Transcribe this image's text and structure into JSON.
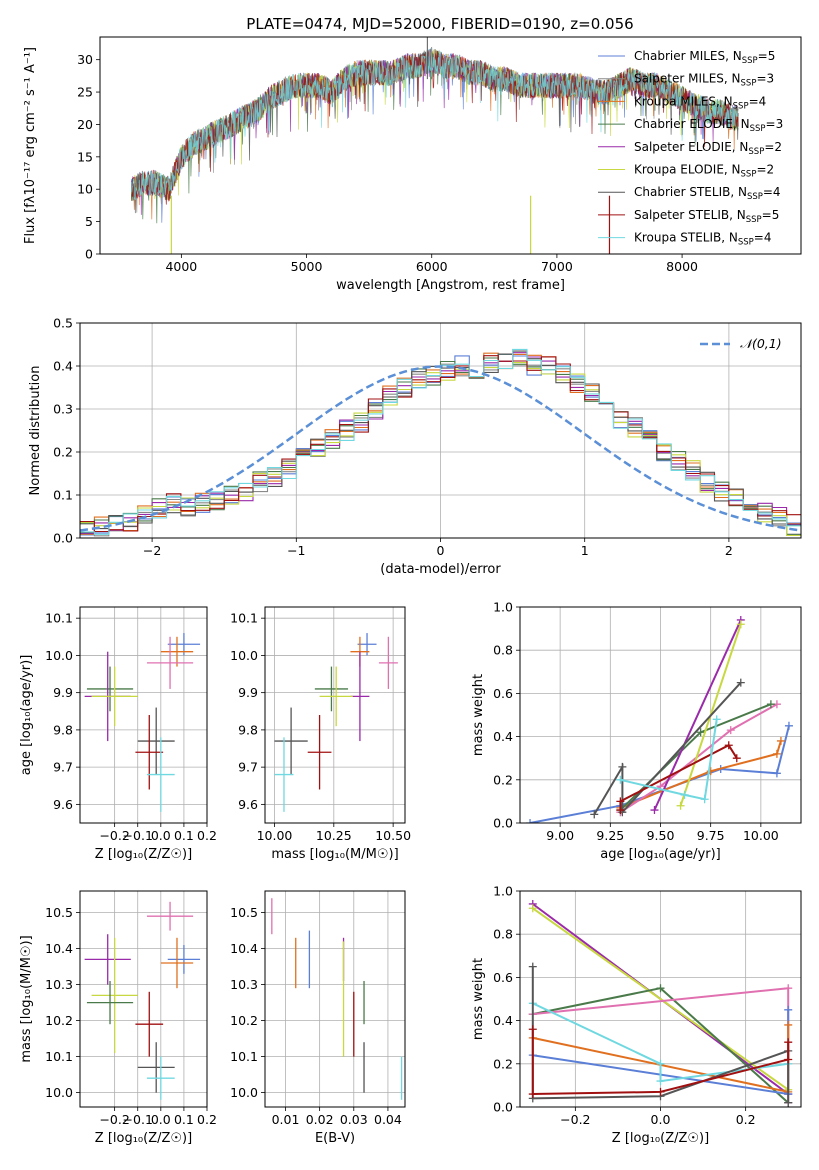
{
  "figure": {
    "title": "PLATE=0474, MJD=52000, FIBERID=0190, z=0.056",
    "colors": {
      "Chabrier MILES": "#5b7fd6",
      "Salpeter MILES": "#8a8a8a",
      "Kroupa MILES": "#e07020",
      "Chabrier ELODIE": "#4a7a4a",
      "Salpeter ELODIE": "#9a2aaa",
      "Kroupa ELODIE": "#c8d840",
      "Chabrier STELIB": "#555555",
      "Salpeter STELIB": "#a01010",
      "Kroupa STELIB": "#70d8e0",
      "Kroupa pink": "#e070b0"
    }
  },
  "chart_data": [
    {
      "id": "spectrum",
      "type": "line",
      "xlabel": "wavelength [Angstrom, rest frame]",
      "ylabel": "Flux [fλ10⁻¹⁷ erg cm⁻² s⁻¹ A⁻¹]",
      "xlim": [
        3350,
        8950
      ],
      "ylim": [
        0,
        33.5
      ],
      "xticks": [
        4000,
        5000,
        6000,
        7000,
        8000
      ],
      "yticks": [
        0,
        5,
        10,
        15,
        20,
        25,
        30
      ],
      "grid": false,
      "legend_position": "top-right",
      "x": [
        3600,
        3700,
        3800,
        3900,
        4000,
        4100,
        4200,
        4300,
        4400,
        4500,
        4600,
        4700,
        4800,
        4900,
        5000,
        5100,
        5200,
        5300,
        5400,
        5500,
        5600,
        5700,
        5800,
        5900,
        6000,
        6100,
        6200,
        6300,
        6400,
        6500,
        6600,
        6700,
        6800,
        6900,
        7000,
        7100,
        7200,
        7300,
        7400,
        7500,
        7600,
        7700,
        7800,
        7900,
        8000,
        8100,
        8200,
        8300,
        8400
      ],
      "y": [
        10,
        11,
        11,
        10,
        15,
        17,
        18,
        19,
        20,
        21,
        22,
        24,
        25,
        26,
        26,
        26,
        25,
        27,
        28,
        28,
        28,
        28,
        29,
        29,
        30,
        29,
        29,
        28,
        28,
        27,
        27,
        26,
        26,
        26,
        26,
        26,
        26,
        25,
        25,
        26,
        27,
        26,
        26,
        25,
        24,
        23,
        22,
        22,
        21
      ],
      "series": [
        {
          "name": "Chabrier MILES, N$_{SSP}$=5",
          "label": "Chabrier MILES, N",
          "sub": "SSP",
          "suffix": "=5",
          "color": "#5b7fd6"
        },
        {
          "name": "Salpeter MILES, N$_{SSP}$=3",
          "label": "Salpeter MILES, N",
          "sub": "SSP",
          "suffix": "=3",
          "color": "#8a8a8a"
        },
        {
          "name": "Kroupa MILES, N$_{SSP}$=4",
          "label": "Kroupa MILES, N",
          "sub": "SSP",
          "suffix": "=4",
          "color": "#e07020"
        },
        {
          "name": "Chabrier ELODIE, N$_{SSP}$=3",
          "label": "Chabrier ELODIE, N",
          "sub": "SSP",
          "suffix": "=3",
          "color": "#4a7a4a"
        },
        {
          "name": "Salpeter ELODIE, N$_{SSP}$=2",
          "label": "Salpeter ELODIE, N",
          "sub": "SSP",
          "suffix": "=2",
          "color": "#9a2aaa"
        },
        {
          "name": "Kroupa ELODIE, N$_{SSP}$=2",
          "label": "Kroupa ELODIE, N",
          "sub": "SSP",
          "suffix": "=2",
          "color": "#c8d840"
        },
        {
          "name": "Chabrier STELIB, N$_{SSP}$=4",
          "label": "Chabrier STELIB, N",
          "sub": "SSP",
          "suffix": "=4",
          "color": "#555555"
        },
        {
          "name": "Salpeter STELIB, N$_{SSP}$=5",
          "label": "Salpeter STELIB, N",
          "sub": "SSP",
          "suffix": "=5",
          "color": "#a01010"
        },
        {
          "name": "Kroupa STELIB, N$_{SSP}$=4",
          "label": "Kroupa STELIB, N",
          "sub": "SSP",
          "suffix": "=4",
          "color": "#70d8e0"
        }
      ]
    },
    {
      "id": "residuals",
      "type": "line",
      "xlabel": "(data-model)/error",
      "ylabel": "Normed distribution",
      "xlim": [
        -2.5,
        2.5
      ],
      "ylim": [
        0,
        0.5
      ],
      "xticks": [
        -2,
        -1,
        0,
        1,
        2
      ],
      "yticks": [
        0.0,
        0.1,
        0.2,
        0.3,
        0.4,
        0.5
      ],
      "grid": true,
      "legend": "𝒩(0,1)",
      "legend_position": "top-right",
      "bin_edges_start": -2.5,
      "bin_width": 0.1,
      "hist": [
        0.02,
        0.03,
        0.03,
        0.04,
        0.05,
        0.07,
        0.08,
        0.07,
        0.08,
        0.09,
        0.1,
        0.11,
        0.13,
        0.14,
        0.16,
        0.19,
        0.21,
        0.23,
        0.25,
        0.27,
        0.3,
        0.33,
        0.35,
        0.37,
        0.38,
        0.39,
        0.4,
        0.39,
        0.41,
        0.41,
        0.42,
        0.4,
        0.4,
        0.38,
        0.36,
        0.34,
        0.31,
        0.28,
        0.26,
        0.23,
        0.2,
        0.18,
        0.16,
        0.13,
        0.11,
        0.09,
        0.08,
        0.06,
        0.05,
        0.03
      ]
    },
    {
      "id": "age_vs_Z",
      "type": "scatter",
      "xlabel": "Z [log₁₀(Z/Z☉)]",
      "ylabel": "age  [log₁₀(age/yr)]",
      "xlim": [
        -0.35,
        0.2
      ],
      "ylim": [
        9.55,
        10.13
      ],
      "xticks": [
        -0.2,
        -0.1,
        0.0,
        0.1,
        0.2
      ],
      "yticks": [
        9.6,
        9.7,
        9.8,
        9.9,
        10.0,
        10.1
      ],
      "grid": true,
      "points": [
        {
          "x": 0.1,
          "y": 10.03,
          "xerr": 0.07,
          "yerr": 0.03,
          "color": "#5b7fd6"
        },
        {
          "x": 0.07,
          "y": 10.01,
          "xerr": 0.07,
          "yerr": 0.04,
          "color": "#e07020"
        },
        {
          "x": 0.04,
          "y": 9.98,
          "xerr": 0.1,
          "yerr": 0.07,
          "color": "#e070b0"
        },
        {
          "x": -0.22,
          "y": 9.91,
          "xerr": 0.1,
          "yerr": 0.06,
          "color": "#4a7a4a"
        },
        {
          "x": -0.23,
          "y": 9.89,
          "xerr": 0.1,
          "yerr": 0.12,
          "color": "#9a2aaa"
        },
        {
          "x": -0.2,
          "y": 9.89,
          "xerr": 0.1,
          "yerr": 0.08,
          "color": "#c8d840"
        },
        {
          "x": -0.02,
          "y": 9.77,
          "xerr": 0.08,
          "yerr": 0.09,
          "color": "#555555"
        },
        {
          "x": -0.05,
          "y": 9.74,
          "xerr": 0.06,
          "yerr": 0.1,
          "color": "#a01010"
        },
        {
          "x": 0.0,
          "y": 9.68,
          "xerr": 0.06,
          "yerr": 0.1,
          "color": "#70d8e0"
        }
      ]
    },
    {
      "id": "age_vs_mass",
      "type": "scatter",
      "xlabel": "mass [log₁₀(M/M☉)]",
      "ylabel": "",
      "xlim": [
        9.96,
        10.55
      ],
      "ylim": [
        9.55,
        10.13
      ],
      "xticks": [
        10.0,
        10.25,
        10.5
      ],
      "yticks": [
        9.6,
        9.7,
        9.8,
        9.9,
        10.0,
        10.1
      ],
      "grid": true,
      "points": [
        {
          "x": 10.39,
          "y": 10.03,
          "xerr": 0.04,
          "yerr": 0.03,
          "color": "#5b7fd6"
        },
        {
          "x": 10.36,
          "y": 10.01,
          "xerr": 0.04,
          "yerr": 0.04,
          "color": "#e07020"
        },
        {
          "x": 10.48,
          "y": 9.98,
          "xerr": 0.04,
          "yerr": 0.07,
          "color": "#e070b0"
        },
        {
          "x": 10.24,
          "y": 9.91,
          "xerr": 0.07,
          "yerr": 0.06,
          "color": "#4a7a4a"
        },
        {
          "x": 10.36,
          "y": 9.89,
          "xerr": 0.04,
          "yerr": 0.12,
          "color": "#9a2aaa"
        },
        {
          "x": 10.26,
          "y": 9.89,
          "xerr": 0.07,
          "yerr": 0.08,
          "color": "#c8d840"
        },
        {
          "x": 10.07,
          "y": 9.77,
          "xerr": 0.07,
          "yerr": 0.09,
          "color": "#555555"
        },
        {
          "x": 10.19,
          "y": 9.74,
          "xerr": 0.05,
          "yerr": 0.1,
          "color": "#a01010"
        },
        {
          "x": 10.04,
          "y": 9.68,
          "xerr": 0.04,
          "yerr": 0.1,
          "color": "#70d8e0"
        }
      ]
    },
    {
      "id": "weight_vs_age",
      "type": "line",
      "xlabel": "age  [log₁₀(age/yr)]",
      "ylabel": "mass weight",
      "xlim": [
        8.8,
        10.2
      ],
      "ylim": [
        0.0,
        1.0
      ],
      "xticks": [
        9.0,
        9.25,
        9.5,
        9.75,
        10.0
      ],
      "yticks": [
        0.0,
        0.2,
        0.4,
        0.6,
        0.8,
        1.0
      ],
      "grid": true,
      "series": [
        {
          "color": "#5b7fd6",
          "x": [
            8.85,
            9.3,
            9.8,
            10.08,
            10.14
          ],
          "y": [
            0.0,
            0.08,
            0.25,
            0.23,
            0.45
          ]
        },
        {
          "color": "#e07020",
          "x": [
            9.3,
            9.75,
            10.08,
            10.1
          ],
          "y": [
            0.07,
            0.24,
            0.32,
            0.38
          ]
        },
        {
          "color": "#e070b0",
          "x": [
            9.3,
            9.5,
            9.85,
            10.08
          ],
          "y": [
            0.05,
            0.17,
            0.43,
            0.55
          ]
        },
        {
          "color": "#4a7a4a",
          "x": [
            9.3,
            9.7,
            10.05
          ],
          "y": [
            0.06,
            0.42,
            0.55
          ]
        },
        {
          "color": "#9a2aaa",
          "x": [
            9.47,
            9.9
          ],
          "y": [
            0.06,
            0.94
          ]
        },
        {
          "color": "#c8d840",
          "x": [
            9.6,
            9.9
          ],
          "y": [
            0.08,
            0.92
          ]
        },
        {
          "color": "#555555",
          "x": [
            9.17,
            9.31,
            9.31,
            9.9
          ],
          "y": [
            0.04,
            0.26,
            0.05,
            0.65
          ]
        },
        {
          "color": "#a01010",
          "x": [
            9.3,
            9.3,
            9.84,
            9.88
          ],
          "y": [
            0.06,
            0.1,
            0.36,
            0.3
          ]
        },
        {
          "color": "#70d8e0",
          "x": [
            9.3,
            9.62,
            9.72,
            9.78
          ],
          "y": [
            0.2,
            0.13,
            0.11,
            0.48
          ]
        }
      ]
    },
    {
      "id": "mass_vs_Z",
      "type": "scatter",
      "xlabel": "Z [log₁₀(Z/Z☉)]",
      "ylabel": "mass [log₁₀(M/M☉)]",
      "xlim": [
        -0.35,
        0.2
      ],
      "ylim": [
        9.96,
        10.56
      ],
      "xticks": [
        -0.2,
        -0.1,
        0.0,
        0.1,
        0.2
      ],
      "yticks": [
        10.0,
        10.1,
        10.2,
        10.3,
        10.4,
        10.5
      ],
      "grid": true,
      "points": [
        {
          "x": 0.04,
          "y": 10.49,
          "xerr": 0.1,
          "yerr": 0.04,
          "color": "#e070b0"
        },
        {
          "x": 0.1,
          "y": 10.37,
          "xerr": 0.07,
          "yerr": 0.04,
          "color": "#5b7fd6"
        },
        {
          "x": 0.07,
          "y": 10.36,
          "xerr": 0.07,
          "yerr": 0.07,
          "color": "#e07020"
        },
        {
          "x": -0.23,
          "y": 10.37,
          "xerr": 0.1,
          "yerr": 0.07,
          "color": "#9a2aaa"
        },
        {
          "x": -0.2,
          "y": 10.27,
          "xerr": 0.1,
          "yerr": 0.16,
          "color": "#c8d840"
        },
        {
          "x": -0.22,
          "y": 10.25,
          "xerr": 0.1,
          "yerr": 0.06,
          "color": "#4a7a4a"
        },
        {
          "x": -0.05,
          "y": 10.19,
          "xerr": 0.06,
          "yerr": 0.09,
          "color": "#a01010"
        },
        {
          "x": -0.02,
          "y": 10.07,
          "xerr": 0.08,
          "yerr": 0.07,
          "color": "#555555"
        },
        {
          "x": 0.0,
          "y": 10.04,
          "xerr": 0.06,
          "yerr": 0.06,
          "color": "#70d8e0"
        }
      ]
    },
    {
      "id": "mass_vs_ebv",
      "type": "scatter",
      "xlabel": "E(B-V)",
      "ylabel": "",
      "xlim": [
        0.004,
        0.045
      ],
      "ylim": [
        9.96,
        10.56
      ],
      "xticks": [
        0.01,
        0.02,
        0.03,
        0.04
      ],
      "yticks": [
        10.0,
        10.1,
        10.2,
        10.3,
        10.4,
        10.5
      ],
      "grid": true,
      "points": [
        {
          "x": 0.006,
          "y": 10.49,
          "xerr": 0,
          "yerr": 0.05,
          "color": "#e070b0"
        },
        {
          "x": 0.017,
          "y": 10.37,
          "xerr": 0,
          "yerr": 0.08,
          "color": "#5b7fd6"
        },
        {
          "x": 0.013,
          "y": 10.36,
          "xerr": 0,
          "yerr": 0.07,
          "color": "#e07020"
        },
        {
          "x": 0.027,
          "y": 10.37,
          "xerr": 0,
          "yerr": 0.06,
          "color": "#9a2aaa"
        },
        {
          "x": 0.027,
          "y": 10.26,
          "xerr": 0,
          "yerr": 0.16,
          "color": "#c8d840"
        },
        {
          "x": 0.033,
          "y": 10.25,
          "xerr": 0,
          "yerr": 0.06,
          "color": "#4a7a4a"
        },
        {
          "x": 0.03,
          "y": 10.19,
          "xerr": 0,
          "yerr": 0.09,
          "color": "#a01010"
        },
        {
          "x": 0.033,
          "y": 10.07,
          "xerr": 0,
          "yerr": 0.07,
          "color": "#555555"
        },
        {
          "x": 0.044,
          "y": 10.04,
          "xerr": 0,
          "yerr": 0.06,
          "color": "#70d8e0"
        }
      ]
    },
    {
      "id": "weight_vs_Z",
      "type": "line",
      "xlabel": "Z [log₁₀(Z/Z☉)]",
      "ylabel": "mass weight",
      "xlim": [
        -0.33,
        0.33
      ],
      "ylim": [
        0.0,
        1.0
      ],
      "xticks": [
        -0.2,
        0.0,
        0.2
      ],
      "yticks": [
        0.0,
        0.2,
        0.4,
        0.6,
        0.8,
        1.0
      ],
      "grid": true,
      "series": [
        {
          "color": "#9a2aaa",
          "x": [
            -0.3,
            0.3
          ],
          "y": [
            0.94,
            0.06
          ]
        },
        {
          "color": "#c8d840",
          "x": [
            -0.3,
            0.3
          ],
          "y": [
            0.92,
            0.08
          ]
        },
        {
          "color": "#4a7a4a",
          "x": [
            -0.3,
            0.0,
            0.3
          ],
          "y": [
            0.43,
            0.55,
            0.02
          ]
        },
        {
          "color": "#e070b0",
          "x": [
            -0.3,
            0.3,
            0.3
          ],
          "y": [
            0.43,
            0.55,
            0.02
          ]
        },
        {
          "color": "#5b7fd6",
          "x": [
            -0.3,
            0.3,
            0.3
          ],
          "y": [
            0.24,
            0.06,
            0.45
          ]
        },
        {
          "color": "#e07020",
          "x": [
            -0.3,
            0.3,
            0.3
          ],
          "y": [
            0.32,
            0.07,
            0.38
          ]
        },
        {
          "color": "#70d8e0",
          "x": [
            -0.3,
            0.0,
            0.0,
            0.3
          ],
          "y": [
            0.48,
            0.2,
            0.12,
            0.2
          ]
        },
        {
          "color": "#555555",
          "x": [
            -0.3,
            -0.3,
            0.0,
            0.3,
            0.3
          ],
          "y": [
            0.65,
            0.04,
            0.05,
            0.26,
            0.02
          ]
        },
        {
          "color": "#a01010",
          "x": [
            -0.3,
            -0.3,
            0.0,
            0.3,
            0.3
          ],
          "y": [
            0.36,
            0.06,
            0.07,
            0.22,
            0.3
          ]
        }
      ]
    }
  ]
}
